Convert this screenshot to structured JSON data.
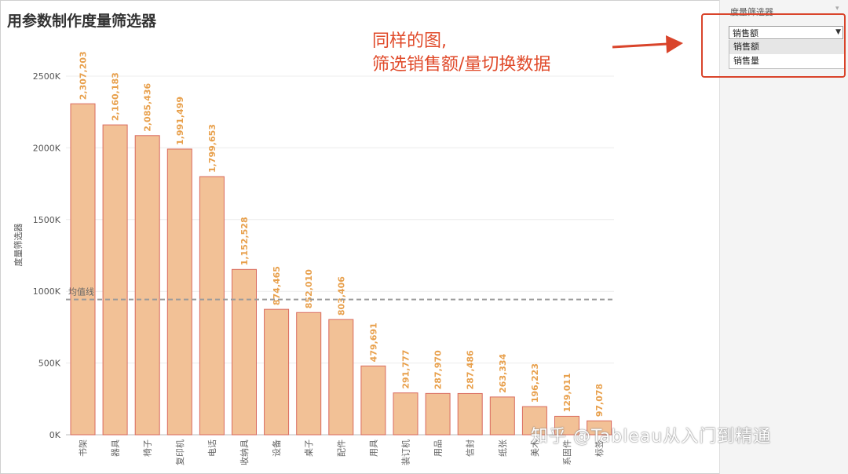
{
  "page": {
    "title": "用参数制作度量筛选器",
    "annotation_line1": "同样的图,",
    "annotation_line2": "筛选销售额/量切换数据",
    "watermark": "知乎 @Tableau从入门到精通"
  },
  "panel": {
    "title": "度量筛选器",
    "collapse_glyph": "▾",
    "dropdown_value": "销售额",
    "options": [
      "销售额",
      "销售量"
    ]
  },
  "chart_data": {
    "type": "bar",
    "ylabel": "度量筛选器",
    "ylim": [
      0,
      2500000
    ],
    "yticks": [
      0,
      500000,
      1000000,
      1500000,
      2000000,
      2500000
    ],
    "ytick_labels": [
      "0K",
      "500K",
      "1000K",
      "1500K",
      "2000K",
      "2500K"
    ],
    "categories": [
      "书架",
      "器具",
      "椅子",
      "复印机",
      "电话",
      "收纳具",
      "设备",
      "桌子",
      "配件",
      "用具",
      "装订机",
      "用品",
      "信封",
      "纸张",
      "美术",
      "系固件",
      "标签"
    ],
    "values": [
      2307203,
      2160183,
      2085436,
      1991499,
      1799653,
      1152528,
      874465,
      852010,
      803406,
      479691,
      291777,
      287970,
      287486,
      263334,
      196223,
      129011,
      97078
    ],
    "value_labels": [
      "2,307,203",
      "2,160,183",
      "2,085,436",
      "1,991,499",
      "1,799,653",
      "1,152,528",
      "874,465",
      "852,010",
      "803,406",
      "479,691",
      "291,777",
      "287,970",
      "287,486",
      "263,334",
      "196,223",
      "129,011",
      "97,078"
    ],
    "reference_line": {
      "label": "均值线",
      "value": 943000
    },
    "grid": true,
    "colors": {
      "bar_fill": "#f2c196",
      "bar_stroke": "#d96a5e",
      "label": "#e8a04c",
      "refline": "#9a9a9a"
    }
  }
}
